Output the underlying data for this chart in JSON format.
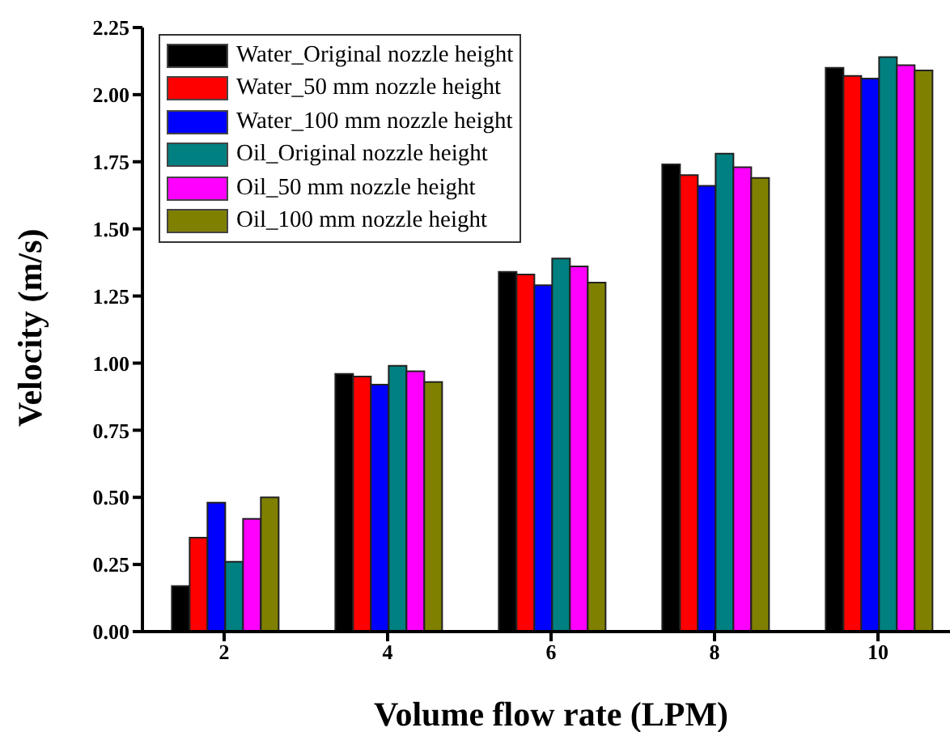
{
  "chart_data": {
    "type": "bar",
    "xlabel": "Volume flow rate (LPM)",
    "ylabel": "Velocity (m/s)",
    "categories": [
      "2",
      "4",
      "6",
      "8",
      "10"
    ],
    "series": [
      {
        "name": "Water_Original nozzle height",
        "color": "#000000",
        "values": [
          0.17,
          0.96,
          1.34,
          1.74,
          2.1
        ]
      },
      {
        "name": "Water_50 mm nozzle height",
        "color": "#ff0000",
        "values": [
          0.35,
          0.95,
          1.33,
          1.7,
          2.07
        ]
      },
      {
        "name": "Water_100 mm nozzle height",
        "color": "#0000ff",
        "values": [
          0.48,
          0.92,
          1.29,
          1.66,
          2.06
        ]
      },
      {
        "name": "Oil_Original nozzle height",
        "color": "#008080",
        "values": [
          0.26,
          0.99,
          1.39,
          1.78,
          2.14
        ]
      },
      {
        "name": "Oil_50 mm nozzle height",
        "color": "#ff00ff",
        "values": [
          0.42,
          0.97,
          1.36,
          1.73,
          2.11
        ]
      },
      {
        "name": "Oil_100 mm nozzle height",
        "color": "#808000",
        "values": [
          0.5,
          0.93,
          1.3,
          1.69,
          2.09
        ]
      }
    ],
    "ylim": [
      0,
      2.25
    ],
    "yticks": [
      {
        "value": 0,
        "label": "0.00"
      },
      {
        "value": 0.25,
        "label": "0.25"
      },
      {
        "value": 0.5,
        "label": "0.50"
      },
      {
        "value": 0.75,
        "label": "0.75"
      },
      {
        "value": 1,
        "label": "1.00"
      },
      {
        "value": 1.25,
        "label": "1.25"
      },
      {
        "value": 1.5,
        "label": "1.50"
      },
      {
        "value": 1.75,
        "label": "1.75"
      },
      {
        "value": 2,
        "label": "2.00"
      },
      {
        "value": 2.25,
        "label": "2.25"
      }
    ],
    "grid": false,
    "legend": "top left"
  }
}
